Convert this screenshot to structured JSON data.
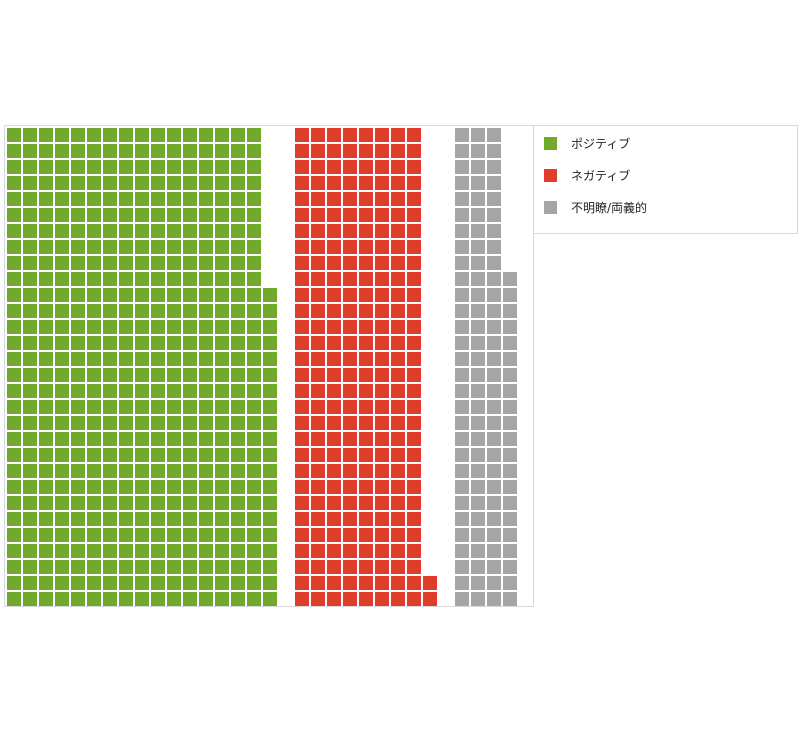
{
  "chart_data": {
    "type": "waffle",
    "title": "",
    "series": [
      {
        "name": "ポジティブ",
        "value": 500,
        "color": "#72a82d"
      },
      {
        "name": "ネガティブ",
        "value": 242,
        "color": "#e03c2c"
      },
      {
        "name": "不明瞭/両義的",
        "value": 111,
        "color": "#a5a5a5"
      }
    ],
    "rows": 30,
    "legend_position": "right-top",
    "legend_labels": [
      "ポジティブ",
      "ネガティブ",
      "不明瞭/両義的"
    ]
  }
}
